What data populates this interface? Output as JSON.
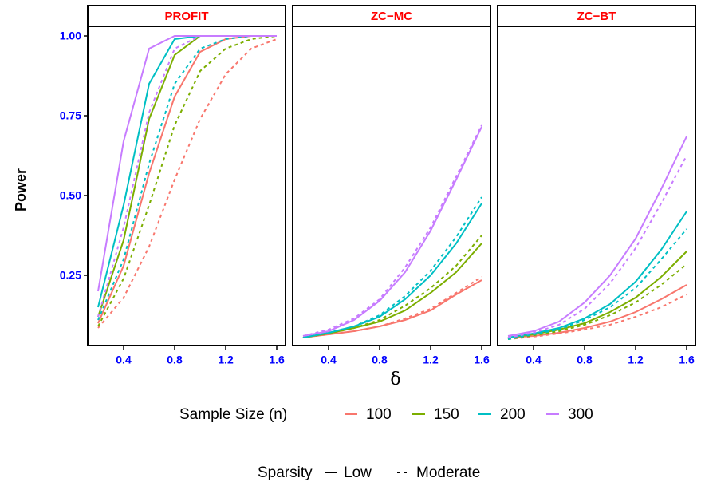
{
  "chart_data": {
    "type": "line",
    "ylabel": "Power",
    "xlabel": "δ",
    "xlim": [
      0.2,
      1.6
    ],
    "ylim": [
      0.03,
      1.03
    ],
    "x_ticks": [
      "0.4",
      "0.8",
      "1.2",
      "1.6"
    ],
    "x_tick_values": [
      0.4,
      0.8,
      1.2,
      1.6
    ],
    "y_ticks": [
      "0.25",
      "0.50",
      "0.75",
      "1.00"
    ],
    "y_tick_values": [
      0.25,
      0.5,
      0.75,
      1.0
    ],
    "tick_color": "#0000ff",
    "strip_color": "#ff0000",
    "x": [
      0.2,
      0.4,
      0.6,
      0.8,
      1.0,
      1.2,
      1.4,
      1.6
    ],
    "legend_placement": "bottom",
    "legend_size": {
      "title": "Sample Size (n)",
      "entries": [
        {
          "label": "100",
          "color": "#F8766D"
        },
        {
          "label": "150",
          "color": "#7CAE00"
        },
        {
          "label": "200",
          "color": "#00BFC4"
        },
        {
          "label": "300",
          "color": "#C77CFF"
        }
      ]
    },
    "legend_sparsity": {
      "title": "Sparsity",
      "entries": [
        {
          "label": "Low",
          "linetype": "solid"
        },
        {
          "label": "Moderate",
          "linetype": "dashed"
        }
      ]
    },
    "panels": [
      {
        "title": "PROFIT",
        "series": [
          {
            "n": "100",
            "sparsity": "Low",
            "values": [
              0.1,
              0.28,
              0.57,
              0.81,
              0.95,
              0.99,
              1.0,
              1.0
            ]
          },
          {
            "n": "100",
            "sparsity": "Moderate",
            "values": [
              0.085,
              0.18,
              0.34,
              0.55,
              0.74,
              0.88,
              0.96,
              0.99
            ]
          },
          {
            "n": "150",
            "sparsity": "Low",
            "values": [
              0.12,
              0.36,
              0.74,
              0.94,
              1.0,
              1.0,
              1.0,
              1.0
            ]
          },
          {
            "n": "150",
            "sparsity": "Moderate",
            "values": [
              0.09,
              0.24,
              0.47,
              0.72,
              0.89,
              0.96,
              0.99,
              1.0
            ]
          },
          {
            "n": "200",
            "sparsity": "Low",
            "values": [
              0.15,
              0.47,
              0.85,
              0.99,
              1.0,
              1.0,
              1.0,
              1.0
            ]
          },
          {
            "n": "200",
            "sparsity": "Moderate",
            "values": [
              0.11,
              0.3,
              0.6,
              0.85,
              0.96,
              0.99,
              1.0,
              1.0
            ]
          },
          {
            "n": "300",
            "sparsity": "Low",
            "values": [
              0.2,
              0.67,
              0.96,
              1.0,
              1.0,
              1.0,
              1.0,
              1.0
            ]
          },
          {
            "n": "300",
            "sparsity": "Moderate",
            "values": [
              0.12,
              0.4,
              0.76,
              0.96,
              1.0,
              1.0,
              1.0,
              1.0
            ]
          }
        ]
      },
      {
        "title": "ZC−MC",
        "series": [
          {
            "n": "100",
            "sparsity": "Low",
            "values": [
              0.055,
              0.065,
              0.075,
              0.09,
              0.11,
              0.14,
              0.19,
              0.235
            ]
          },
          {
            "n": "100",
            "sparsity": "Moderate",
            "values": [
              0.055,
              0.065,
              0.075,
              0.09,
              0.115,
              0.145,
              0.195,
              0.245
            ]
          },
          {
            "n": "150",
            "sparsity": "Low",
            "values": [
              0.055,
              0.068,
              0.085,
              0.105,
              0.14,
              0.195,
              0.26,
              0.35
            ]
          },
          {
            "n": "150",
            "sparsity": "Moderate",
            "values": [
              0.055,
              0.068,
              0.085,
              0.11,
              0.155,
              0.21,
              0.28,
              0.375
            ]
          },
          {
            "n": "200",
            "sparsity": "Low",
            "values": [
              0.055,
              0.07,
              0.09,
              0.12,
              0.175,
              0.25,
              0.35,
              0.475
            ]
          },
          {
            "n": "200",
            "sparsity": "Moderate",
            "values": [
              0.055,
              0.07,
              0.09,
              0.125,
              0.185,
              0.265,
              0.37,
              0.495
            ]
          },
          {
            "n": "300",
            "sparsity": "Low",
            "values": [
              0.06,
              0.075,
              0.11,
              0.17,
              0.26,
              0.39,
              0.55,
              0.715
            ]
          },
          {
            "n": "300",
            "sparsity": "Moderate",
            "values": [
              0.06,
              0.08,
              0.115,
              0.175,
              0.275,
              0.4,
              0.56,
              0.72
            ]
          }
        ]
      },
      {
        "title": "ZC−BT",
        "series": [
          {
            "n": "100",
            "sparsity": "Low",
            "values": [
              0.055,
              0.06,
              0.07,
              0.085,
              0.105,
              0.135,
              0.175,
              0.22
            ]
          },
          {
            "n": "100",
            "sparsity": "Moderate",
            "values": [
              0.05,
              0.058,
              0.068,
              0.08,
              0.095,
              0.12,
              0.15,
              0.19
            ]
          },
          {
            "n": "150",
            "sparsity": "Low",
            "values": [
              0.055,
              0.065,
              0.08,
              0.1,
              0.135,
              0.18,
              0.245,
              0.325
            ]
          },
          {
            "n": "150",
            "sparsity": "Moderate",
            "values": [
              0.05,
              0.062,
              0.075,
              0.095,
              0.125,
              0.165,
              0.22,
              0.285
            ]
          },
          {
            "n": "200",
            "sparsity": "Low",
            "values": [
              0.055,
              0.068,
              0.085,
              0.115,
              0.16,
              0.23,
              0.33,
              0.45
            ]
          },
          {
            "n": "200",
            "sparsity": "Moderate",
            "values": [
              0.05,
              0.065,
              0.08,
              0.11,
              0.15,
              0.21,
              0.3,
              0.395
            ]
          },
          {
            "n": "300",
            "sparsity": "Low",
            "values": [
              0.06,
              0.075,
              0.105,
              0.165,
              0.25,
              0.365,
              0.52,
              0.685
            ]
          },
          {
            "n": "300",
            "sparsity": "Moderate",
            "values": [
              0.055,
              0.07,
              0.095,
              0.145,
              0.225,
              0.335,
              0.475,
              0.625
            ]
          }
        ]
      }
    ]
  }
}
